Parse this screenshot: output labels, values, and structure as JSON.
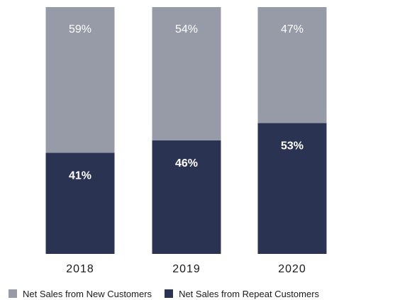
{
  "chart_data": {
    "type": "bar",
    "stacked": true,
    "percent_stacked": true,
    "categories": [
      "2018",
      "2019",
      "2020"
    ],
    "series": [
      {
        "name": "Net Sales from Repeat Customers",
        "values": [
          41,
          46,
          53
        ],
        "labels": [
          "41%",
          "46%",
          "53%"
        ],
        "color": "#2a3452",
        "label_color": "#ffffff"
      },
      {
        "name": "Net Sales from New Customers",
        "values": [
          59,
          54,
          47
        ],
        "labels": [
          "59%",
          "54%",
          "47%"
        ],
        "color": "#979ba8",
        "label_color": "#ffffff"
      }
    ],
    "title": "",
    "xlabel": "",
    "ylabel": "",
    "ylim": [
      0,
      100
    ],
    "grid": false,
    "legend": {
      "placement": "bottom",
      "items": [
        {
          "label": "Net Sales from New Customers",
          "color": "#979ba8"
        },
        {
          "label": "Net Sales from Repeat Customers",
          "color": "#2a3452"
        }
      ]
    }
  }
}
